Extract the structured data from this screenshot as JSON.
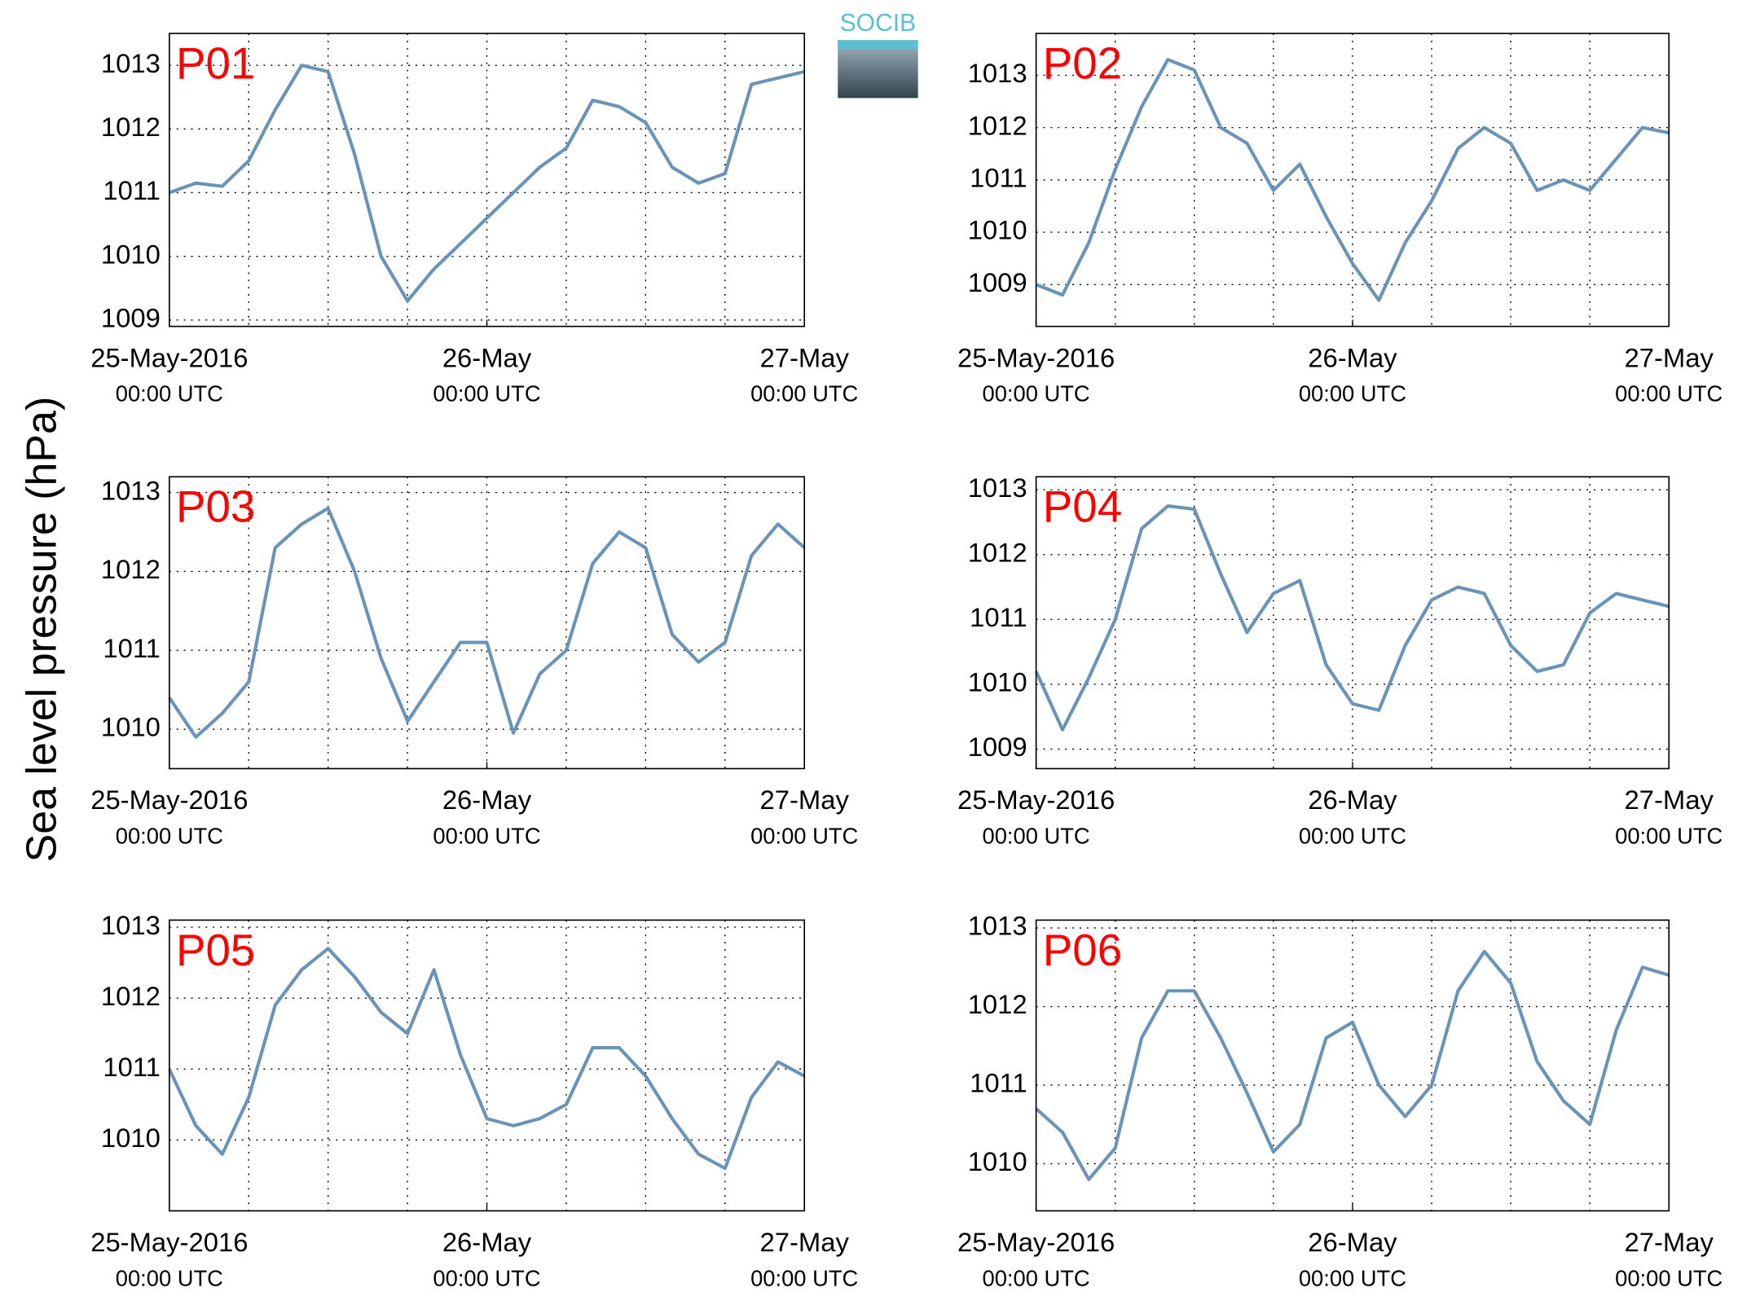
{
  "ylabel": "Sea level pressure (hPa)",
  "logo": "SOCIB",
  "chart_data": [
    {
      "type": "line",
      "title": "P01",
      "x": [
        0,
        2,
        4,
        6,
        8,
        10,
        12,
        14,
        16,
        18,
        20,
        22,
        24,
        26,
        28,
        30,
        32,
        34,
        36,
        38,
        40,
        42,
        44,
        46,
        48
      ],
      "series": [
        {
          "color": "#6a93b8",
          "values": [
            1011.0,
            1011.15,
            1011.1,
            1011.5,
            1012.3,
            1013.0,
            1012.9,
            1011.6,
            1010.0,
            1009.3,
            1009.8,
            1010.2,
            1010.6,
            1011.0,
            1011.4,
            1011.7,
            1012.45,
            1012.35,
            1012.1,
            1011.4,
            1011.15,
            1011.3,
            1012.7,
            1012.8,
            1012.9
          ]
        }
      ],
      "xlim": [
        0,
        48
      ],
      "xgrid": [
        0,
        6,
        12,
        18,
        24,
        30,
        36,
        42,
        48
      ],
      "xticks": [
        {
          "value": 0,
          "label": "25-May-2016"
        },
        {
          "value": 24,
          "label": "26-May"
        },
        {
          "value": 48,
          "label": "27-May"
        }
      ],
      "xtick_sublabels": [
        "00:00 UTC",
        "00:00 UTC",
        "00:00 UTC"
      ],
      "ylim": [
        1008.9,
        1013.5
      ],
      "yticks": [
        1009,
        1010,
        1011,
        1012,
        1013
      ],
      "grid": true
    },
    {
      "type": "line",
      "title": "P02",
      "x": [
        0,
        2,
        4,
        6,
        8,
        10,
        12,
        14,
        16,
        18,
        20,
        22,
        24,
        26,
        28,
        30,
        32,
        34,
        36,
        38,
        40,
        42,
        44,
        46,
        48
      ],
      "series": [
        {
          "color": "#6a93b8",
          "values": [
            1009.0,
            1008.8,
            1009.8,
            1011.2,
            1012.4,
            1013.3,
            1013.1,
            1012.0,
            1011.7,
            1010.8,
            1011.3,
            1010.3,
            1009.4,
            1008.7,
            1009.8,
            1010.6,
            1011.6,
            1012.0,
            1011.7,
            1010.8,
            1011.0,
            1010.8,
            1011.4,
            1012.0,
            1011.9
          ]
        }
      ],
      "xlim": [
        0,
        48
      ],
      "xgrid": [
        0,
        6,
        12,
        18,
        24,
        30,
        36,
        42,
        48
      ],
      "xticks": [
        {
          "value": 0,
          "label": "25-May-2016"
        },
        {
          "value": 24,
          "label": "26-May"
        },
        {
          "value": 48,
          "label": "27-May"
        }
      ],
      "xtick_sublabels": [
        "00:00 UTC",
        "00:00 UTC",
        "00:00 UTC"
      ],
      "ylim": [
        1008.2,
        1013.8
      ],
      "yticks": [
        1009,
        1010,
        1011,
        1012,
        1013
      ],
      "grid": true
    },
    {
      "type": "line",
      "title": "P03",
      "x": [
        0,
        2,
        4,
        6,
        8,
        10,
        12,
        14,
        16,
        18,
        20,
        22,
        24,
        26,
        28,
        30,
        32,
        34,
        36,
        38,
        40,
        42,
        44,
        46,
        48
      ],
      "series": [
        {
          "color": "#6a93b8",
          "values": [
            1010.4,
            1009.9,
            1010.2,
            1010.6,
            1012.3,
            1012.6,
            1012.8,
            1012.0,
            1010.9,
            1010.1,
            1010.6,
            1011.1,
            1011.1,
            1009.95,
            1010.7,
            1011.0,
            1012.1,
            1012.5,
            1012.3,
            1011.2,
            1010.85,
            1011.1,
            1012.2,
            1012.6,
            1012.3
          ]
        }
      ],
      "xlim": [
        0,
        48
      ],
      "xgrid": [
        0,
        6,
        12,
        18,
        24,
        30,
        36,
        42,
        48
      ],
      "xticks": [
        {
          "value": 0,
          "label": "25-May-2016"
        },
        {
          "value": 24,
          "label": "26-May"
        },
        {
          "value": 48,
          "label": "27-May"
        }
      ],
      "xtick_sublabels": [
        "00:00 UTC",
        "00:00 UTC",
        "00:00 UTC"
      ],
      "ylim": [
        1009.5,
        1013.2
      ],
      "yticks": [
        1010,
        1011,
        1012,
        1013
      ],
      "grid": true
    },
    {
      "type": "line",
      "title": "P04",
      "x": [
        0,
        2,
        4,
        6,
        8,
        10,
        12,
        14,
        16,
        18,
        20,
        22,
        24,
        26,
        28,
        30,
        32,
        34,
        36,
        38,
        40,
        42,
        44,
        46,
        48
      ],
      "series": [
        {
          "color": "#6a93b8",
          "values": [
            1010.2,
            1009.3,
            1010.1,
            1011.0,
            1012.4,
            1012.75,
            1012.7,
            1011.7,
            1010.8,
            1011.4,
            1011.6,
            1010.3,
            1009.7,
            1009.6,
            1010.6,
            1011.3,
            1011.5,
            1011.4,
            1010.6,
            1010.2,
            1010.3,
            1011.1,
            1011.4,
            1011.3,
            1011.2
          ]
        }
      ],
      "xlim": [
        0,
        48
      ],
      "xgrid": [
        0,
        6,
        12,
        18,
        24,
        30,
        36,
        42,
        48
      ],
      "xticks": [
        {
          "value": 0,
          "label": "25-May-2016"
        },
        {
          "value": 24,
          "label": "26-May"
        },
        {
          "value": 48,
          "label": "27-May"
        }
      ],
      "xtick_sublabels": [
        "00:00 UTC",
        "00:00 UTC",
        "00:00 UTC"
      ],
      "ylim": [
        1008.7,
        1013.2
      ],
      "yticks": [
        1009,
        1010,
        1011,
        1012,
        1013
      ],
      "grid": true
    },
    {
      "type": "line",
      "title": "P05",
      "x": [
        0,
        2,
        4,
        6,
        8,
        10,
        12,
        14,
        16,
        18,
        20,
        22,
        24,
        26,
        28,
        30,
        32,
        34,
        36,
        38,
        40,
        42,
        44,
        46,
        48
      ],
      "series": [
        {
          "color": "#6a93b8",
          "values": [
            1011.0,
            1010.2,
            1009.8,
            1010.6,
            1011.9,
            1012.4,
            1012.7,
            1012.3,
            1011.8,
            1011.5,
            1012.4,
            1011.2,
            1010.3,
            1010.2,
            1010.3,
            1010.5,
            1011.3,
            1011.3,
            1010.9,
            1010.3,
            1009.8,
            1009.6,
            1010.6,
            1011.1,
            1010.9
          ]
        }
      ],
      "xlim": [
        0,
        48
      ],
      "xgrid": [
        0,
        6,
        12,
        18,
        24,
        30,
        36,
        42,
        48
      ],
      "xticks": [
        {
          "value": 0,
          "label": "25-May-2016"
        },
        {
          "value": 24,
          "label": "26-May"
        },
        {
          "value": 48,
          "label": "27-May"
        }
      ],
      "xtick_sublabels": [
        "00:00 UTC",
        "00:00 UTC",
        "00:00 UTC"
      ],
      "ylim": [
        1009.0,
        1013.1
      ],
      "yticks": [
        1010,
        1011,
        1012,
        1013
      ],
      "grid": true
    },
    {
      "type": "line",
      "title": "P06",
      "x": [
        0,
        2,
        4,
        6,
        8,
        10,
        12,
        14,
        16,
        18,
        20,
        22,
        24,
        26,
        28,
        30,
        32,
        34,
        36,
        38,
        40,
        42,
        44,
        46,
        48
      ],
      "series": [
        {
          "color": "#6a93b8",
          "values": [
            1010.7,
            1010.4,
            1009.8,
            1010.2,
            1011.6,
            1012.2,
            1012.2,
            1011.6,
            1010.9,
            1010.15,
            1010.5,
            1011.6,
            1011.8,
            1011.0,
            1010.6,
            1011.0,
            1012.2,
            1012.7,
            1012.3,
            1011.3,
            1010.8,
            1010.5,
            1011.7,
            1012.5,
            1012.4
          ]
        }
      ],
      "xlim": [
        0,
        48
      ],
      "xgrid": [
        0,
        6,
        12,
        18,
        24,
        30,
        36,
        42,
        48
      ],
      "xticks": [
        {
          "value": 0,
          "label": "25-May-2016"
        },
        {
          "value": 24,
          "label": "26-May"
        },
        {
          "value": 48,
          "label": "27-May"
        }
      ],
      "xtick_sublabels": [
        "00:00 UTC",
        "00:00 UTC",
        "00:00 UTC"
      ],
      "ylim": [
        1009.4,
        1013.1
      ],
      "yticks": [
        1010,
        1011,
        1012,
        1013
      ],
      "grid": true
    }
  ]
}
